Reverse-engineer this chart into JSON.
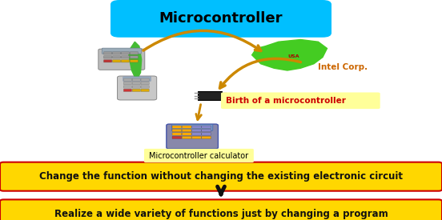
{
  "title": "Microcontroller",
  "title_bg": "#00BFFF",
  "box1_text": "Change the function without changing the existing electronic circuit",
  "box2_text": "Realize a wide variety of functions just by changing a program",
  "box_bg": "#FFD700",
  "box_border": "#CC0000",
  "intel_label": "Intel Corp.",
  "birth_label": "Birth of a microcontroller",
  "birth_label_bg": "#FFFF99",
  "calc_label": "Microcontroller calculator",
  "calc_label_bg": "#FFFF99",
  "background": "#FFFFFF",
  "arrow_color": "#CC8800",
  "down_arrow_color": "#111111",
  "text_color": "#111111",
  "intel_text_color": "#CC6600",
  "fig_w": 5.52,
  "fig_h": 2.75,
  "dpi": 100
}
